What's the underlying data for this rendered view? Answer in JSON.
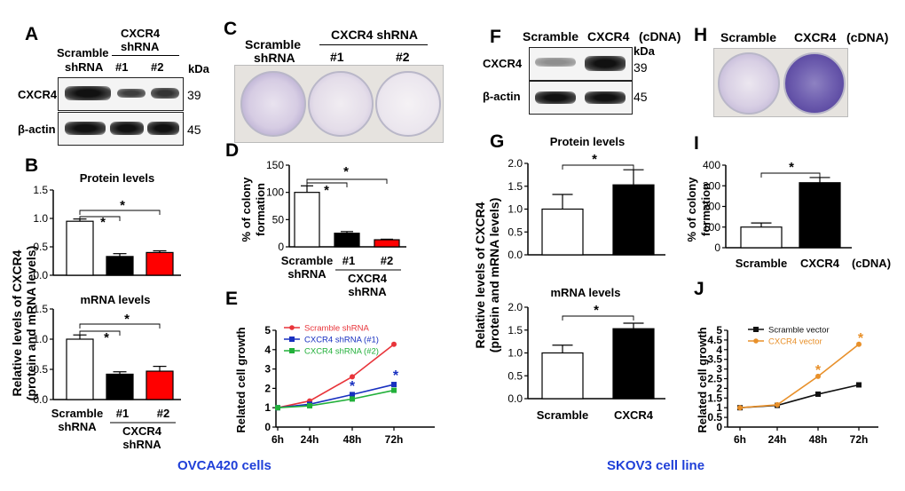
{
  "panelA": {
    "letter": "A",
    "col_scramble": [
      "Scramble",
      "shRNA"
    ],
    "col_cxcr4_header": [
      "CXCR4",
      "shRNA"
    ],
    "lane1": "#1",
    "lane2": "#2",
    "kda": "kDa",
    "rows": [
      {
        "label": "CXCR4",
        "kda": "39"
      },
      {
        "label": "β-actin",
        "kda": "45"
      }
    ]
  },
  "panelB": {
    "letter": "B",
    "ylabel": [
      "Relative levels of CXCR4",
      "(protein and mRNA levels)"
    ],
    "top": {
      "title": "Protein levels",
      "yticks": [
        "0.0",
        "0.5",
        "1.0",
        "1.5"
      ],
      "values": [
        0.95,
        0.33,
        0.4
      ],
      "colors": [
        "#ffffff",
        "#000000",
        "#ff0000"
      ],
      "sig": "*"
    },
    "bottom": {
      "title": "mRNA levels",
      "yticks": [
        "0.0",
        "0.5",
        "1.0",
        "1.5"
      ],
      "values": [
        1.0,
        0.42,
        0.47
      ],
      "colors": [
        "#ffffff",
        "#000000",
        "#ff0000"
      ],
      "sig": "*"
    },
    "xlabels": {
      "scramble": [
        "Scramble",
        "shRNA"
      ],
      "lane1": "#1",
      "lane2": "#2",
      "cxcr4": [
        "CXCR4",
        "shRNA"
      ]
    }
  },
  "panelC": {
    "letter": "C",
    "col_scramble": [
      "Scramble",
      "shRNA"
    ],
    "col_cxcr4_header": "CXCR4 shRNA",
    "lane1": "#1",
    "lane2": "#2"
  },
  "panelD": {
    "letter": "D",
    "ylabel": [
      "% of colony",
      "formation"
    ],
    "yticks": [
      "0",
      "50",
      "100",
      "150"
    ],
    "values": [
      100,
      25,
      13
    ],
    "colors": [
      "#ffffff",
      "#000000",
      "#ff0000"
    ],
    "sig": "*",
    "xlabels": {
      "scramble": [
        "Scramble",
        "shRNA"
      ],
      "lane1": "#1",
      "lane2": "#2",
      "cxcr4": [
        "CXCR4",
        "shRNA"
      ]
    }
  },
  "panelE": {
    "letter": "E",
    "ylabel": "Related cell growth",
    "yticks": [
      "0",
      "1",
      "2",
      "3",
      "4",
      "5"
    ],
    "xticks": [
      "6h",
      "24h",
      "48h",
      "72h"
    ],
    "sig": "*",
    "legend": [
      "Scramble shRNA",
      "CXCR4 shRNA (#1)",
      "CXCR4 shRNA (#2)"
    ]
  },
  "panelF": {
    "letter": "F",
    "cols": [
      "Scramble",
      "CXCR4"
    ],
    "cdna": "(cDNA)",
    "kda": "kDa",
    "rows": [
      {
        "label": "CXCR4",
        "kda": "39"
      },
      {
        "label": "β-actin",
        "kda": "45"
      }
    ]
  },
  "panelG": {
    "letter": "G",
    "ylabel": [
      "Relative levels of CXCR4",
      "(protein and mRNA levels)"
    ],
    "top": {
      "title": "Protein levels",
      "yticks": [
        "0.0",
        "0.5",
        "1.0",
        "1.5",
        "2.0"
      ],
      "values": [
        1.0,
        1.53
      ],
      "sig": "*"
    },
    "bottom": {
      "title": "mRNA levels",
      "yticks": [
        "0.0",
        "0.5",
        "1.0",
        "1.5",
        "2.0"
      ],
      "values": [
        1.0,
        1.53
      ],
      "sig": "*"
    },
    "xlabels": [
      "Scramble",
      "CXCR4"
    ]
  },
  "panelH": {
    "letter": "H",
    "cols": [
      "Scramble",
      "CXCR4"
    ],
    "cdna": "(cDNA)"
  },
  "panelI": {
    "letter": "I",
    "ylabel": [
      "% of colony",
      "formation"
    ],
    "yticks": [
      "0",
      "100",
      "200",
      "300",
      "400"
    ],
    "values": [
      100,
      315
    ],
    "sig": "*",
    "xlabels": [
      "Scramble",
      "CXCR4"
    ],
    "cdna": "(cDNA)"
  },
  "panelJ": {
    "letter": "J",
    "ylabel": "Related cell growth",
    "yticks": [
      "0",
      "0.5",
      "1",
      "1.5",
      "2",
      "2.5",
      "3",
      "3.5",
      "4",
      "4.5",
      "5"
    ],
    "xticks": [
      "6h",
      "24h",
      "48h",
      "72h"
    ],
    "sig": "*",
    "legend": [
      "Scramble vector",
      "CXCR4 vector"
    ]
  },
  "captions": {
    "left": "OVCA420 cells",
    "right": "SKOV3 cell line"
  },
  "chart_data": [
    {
      "type": "bar",
      "id": "B-protein",
      "title": "Protein levels",
      "categories": [
        "Scramble shRNA",
        "#1",
        "#2"
      ],
      "values": [
        0.95,
        0.33,
        0.4
      ],
      "ylim": [
        0,
        1.5
      ],
      "ylabel": "Relative levels of CXCR4 (protein and mRNA levels)"
    },
    {
      "type": "bar",
      "id": "B-mRNA",
      "title": "mRNA levels",
      "categories": [
        "Scramble shRNA",
        "#1",
        "#2"
      ],
      "values": [
        1.0,
        0.42,
        0.47
      ],
      "ylim": [
        0,
        1.5
      ]
    },
    {
      "type": "bar",
      "id": "D",
      "title": "",
      "categories": [
        "Scramble shRNA",
        "#1",
        "#2"
      ],
      "values": [
        100,
        25,
        13
      ],
      "ylim": [
        0,
        150
      ],
      "ylabel": "% of colony formation"
    },
    {
      "type": "line",
      "id": "E",
      "x": [
        "6h",
        "24h",
        "48h",
        "72h"
      ],
      "ylim": [
        0,
        5
      ],
      "ylabel": "Related cell growth",
      "series": [
        {
          "name": "Scramble shRNA",
          "color": "#e8343a",
          "values": [
            1.0,
            1.35,
            2.6,
            4.28
          ]
        },
        {
          "name": "CXCR4 shRNA (#1)",
          "color": "#1830c0",
          "values": [
            1.0,
            1.18,
            1.68,
            2.2
          ]
        },
        {
          "name": "CXCR4 shRNA (#2)",
          "color": "#22b03a",
          "values": [
            1.0,
            1.1,
            1.45,
            1.9
          ]
        }
      ]
    },
    {
      "type": "bar",
      "id": "G-protein",
      "title": "Protein levels",
      "categories": [
        "Scramble",
        "CXCR4"
      ],
      "values": [
        1.0,
        1.53
      ],
      "ylim": [
        0,
        2.0
      ]
    },
    {
      "type": "bar",
      "id": "G-mRNA",
      "title": "mRNA levels",
      "categories": [
        "Scramble",
        "CXCR4"
      ],
      "values": [
        1.0,
        1.53
      ],
      "ylim": [
        0,
        2.0
      ]
    },
    {
      "type": "bar",
      "id": "I",
      "title": "",
      "categories": [
        "Scramble",
        "CXCR4"
      ],
      "values": [
        100,
        315
      ],
      "ylim": [
        0,
        400
      ],
      "ylabel": "% of colony formation"
    },
    {
      "type": "line",
      "id": "J",
      "x": [
        "6h",
        "24h",
        "48h",
        "72h"
      ],
      "ylim": [
        0,
        5
      ],
      "ylabel": "Related cell growth",
      "series": [
        {
          "name": "Scramble vector",
          "color": "#111111",
          "values": [
            1.0,
            1.12,
            1.7,
            2.18
          ]
        },
        {
          "name": "CXCR4 vector",
          "color": "#e8902a",
          "values": [
            1.0,
            1.15,
            2.62,
            4.28
          ]
        }
      ]
    }
  ]
}
